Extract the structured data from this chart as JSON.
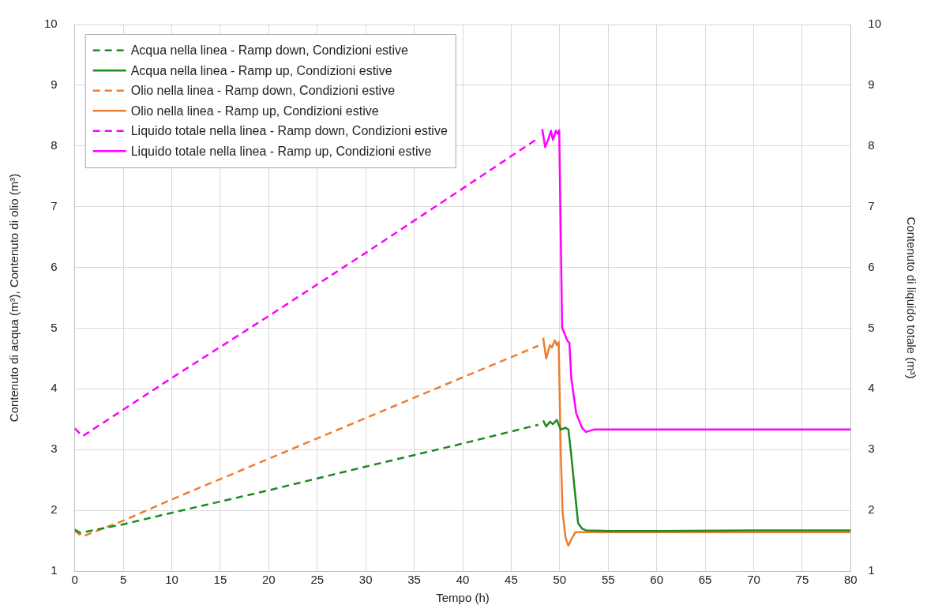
{
  "chart_data": {
    "type": "line",
    "xlabel": "Tempo (h)",
    "ylabel": "Contenuto di acqua (m³), Contenuto di olio (m³)",
    "y2label": "Contenuto di liquido totale (m³)",
    "xlim": [
      0,
      80
    ],
    "xticks": [
      0,
      5,
      10,
      15,
      20,
      25,
      30,
      35,
      40,
      45,
      50,
      55,
      60,
      65,
      70,
      75,
      80
    ],
    "ylim": [
      1,
      10
    ],
    "yticks": [
      1,
      2,
      3,
      4,
      5,
      6,
      7,
      8,
      9,
      10
    ],
    "y2lim": [
      1,
      10
    ],
    "y2ticks": [
      1,
      2,
      3,
      4,
      5,
      6,
      7,
      8,
      9,
      10
    ],
    "grid": true,
    "legend": "top left",
    "marker": "none",
    "series": [
      {
        "name": "Acqua nella linea - Ramp down, Condizioni estive",
        "color": "#1f8a1f",
        "line_style": "dashed",
        "x": [
          0,
          0.6,
          5,
          10,
          20,
          30,
          40,
          47.8
        ],
        "values": [
          1.68,
          1.63,
          1.77,
          1.96,
          2.33,
          2.72,
          3.1,
          3.41
        ]
      },
      {
        "name": "Acqua nella linea - Ramp up, Condizioni estive",
        "color": "#1f8a1f",
        "line_style": "solid",
        "x": [
          48.3,
          48.6,
          49,
          49.3,
          49.7,
          50.1,
          50.6,
          50.9,
          51.2,
          51.5,
          51.9,
          52.3,
          52.7,
          55,
          60,
          70,
          80
        ],
        "values": [
          3.48,
          3.38,
          3.46,
          3.42,
          3.49,
          3.33,
          3.36,
          3.33,
          2.9,
          2.41,
          1.79,
          1.7,
          1.67,
          1.66,
          1.66,
          1.67,
          1.67
        ]
      },
      {
        "name": "Olio nella linea - Ramp down, Condizioni estive",
        "color": "#ed7d31",
        "line_style": "dashed",
        "x": [
          0,
          0.8,
          5,
          10,
          20,
          30,
          40,
          47.8
        ],
        "values": [
          1.66,
          1.57,
          1.83,
          2.18,
          2.85,
          3.52,
          4.19,
          4.71
        ]
      },
      {
        "name": "Olio nella linea - Ramp up, Condizioni estive",
        "color": "#ed7d31",
        "line_style": "solid",
        "x": [
          48.3,
          48.6,
          49,
          49.2,
          49.5,
          49.7,
          49.9,
          50.1,
          50.3,
          50.6,
          50.9,
          51.2,
          51.6,
          52,
          55,
          60,
          70,
          80
        ],
        "values": [
          4.84,
          4.5,
          4.72,
          4.68,
          4.8,
          4.72,
          4.77,
          3,
          1.97,
          1.55,
          1.42,
          1.52,
          1.64,
          1.64,
          1.64,
          1.64,
          1.64,
          1.64
        ]
      },
      {
        "name": "Liquido totale nella linea - Ramp down, Condizioni estive",
        "color": "#ff00ff",
        "line_style": "dashed",
        "x": [
          0,
          0.8,
          10,
          20,
          30,
          40,
          47.8
        ],
        "values": [
          3.35,
          3.22,
          4.18,
          5.2,
          6.24,
          7.3,
          8.13
        ]
      },
      {
        "name": "Liquido totale nella linea - Ramp up, Condizioni estive",
        "color": "#ff00ff",
        "line_style": "solid",
        "x": [
          48.2,
          48.5,
          48.8,
          49.1,
          49.3,
          49.6,
          49.8,
          49.95,
          50.25,
          50.8,
          51,
          51.2,
          51.7,
          52.3,
          52.7,
          53.5,
          60,
          70,
          80
        ],
        "values": [
          8.28,
          7.98,
          8.1,
          8.25,
          8.1,
          8.25,
          8.2,
          8.26,
          5.01,
          4.79,
          4.76,
          4.17,
          3.6,
          3.36,
          3.29,
          3.33,
          3.33,
          3.33,
          3.33
        ]
      }
    ]
  }
}
